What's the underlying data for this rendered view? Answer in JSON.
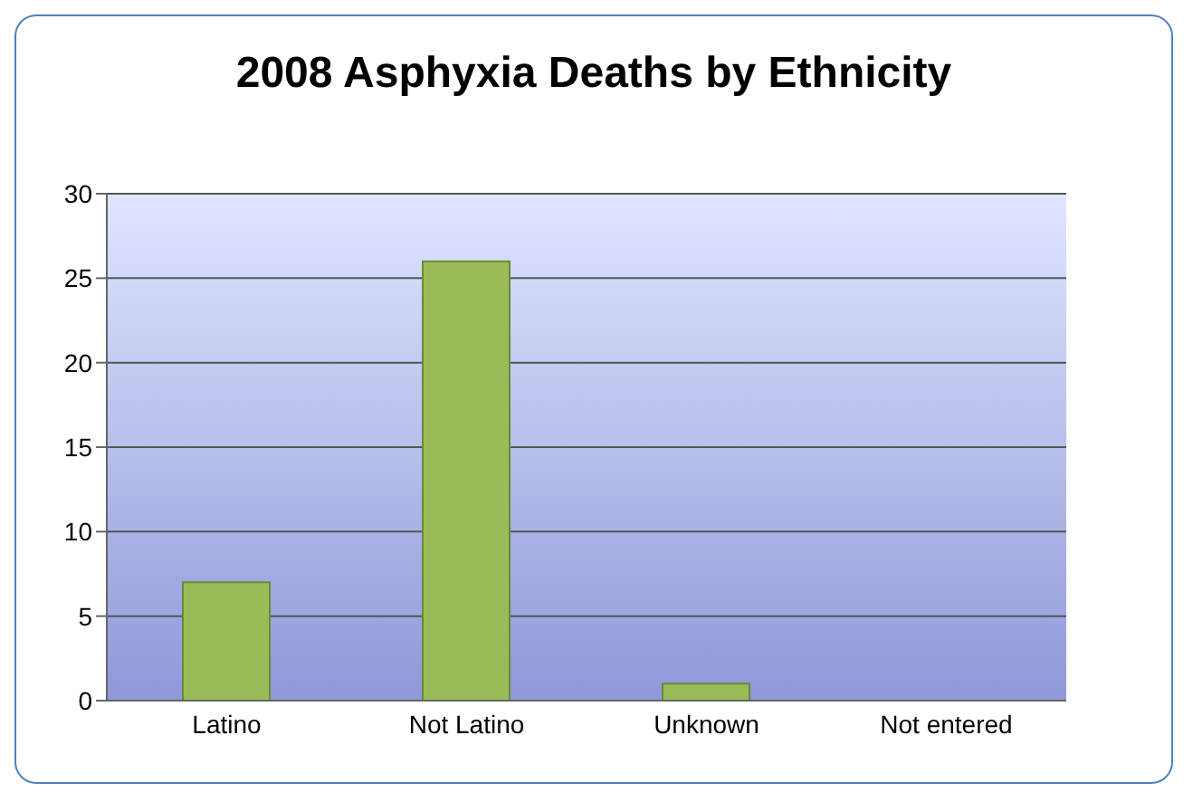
{
  "chart_data": {
    "type": "bar",
    "title": "2008 Asphyxia Deaths by Ethnicity",
    "categories": [
      "Latino",
      "Not Latino",
      "Unknown",
      "Not entered"
    ],
    "values": [
      7,
      26,
      1,
      0
    ],
    "color": "#9bbb59",
    "ylim": [
      0,
      30
    ],
    "yticks": [
      0,
      5,
      10,
      15,
      20,
      25,
      30
    ],
    "grid": "y",
    "legend": false
  }
}
